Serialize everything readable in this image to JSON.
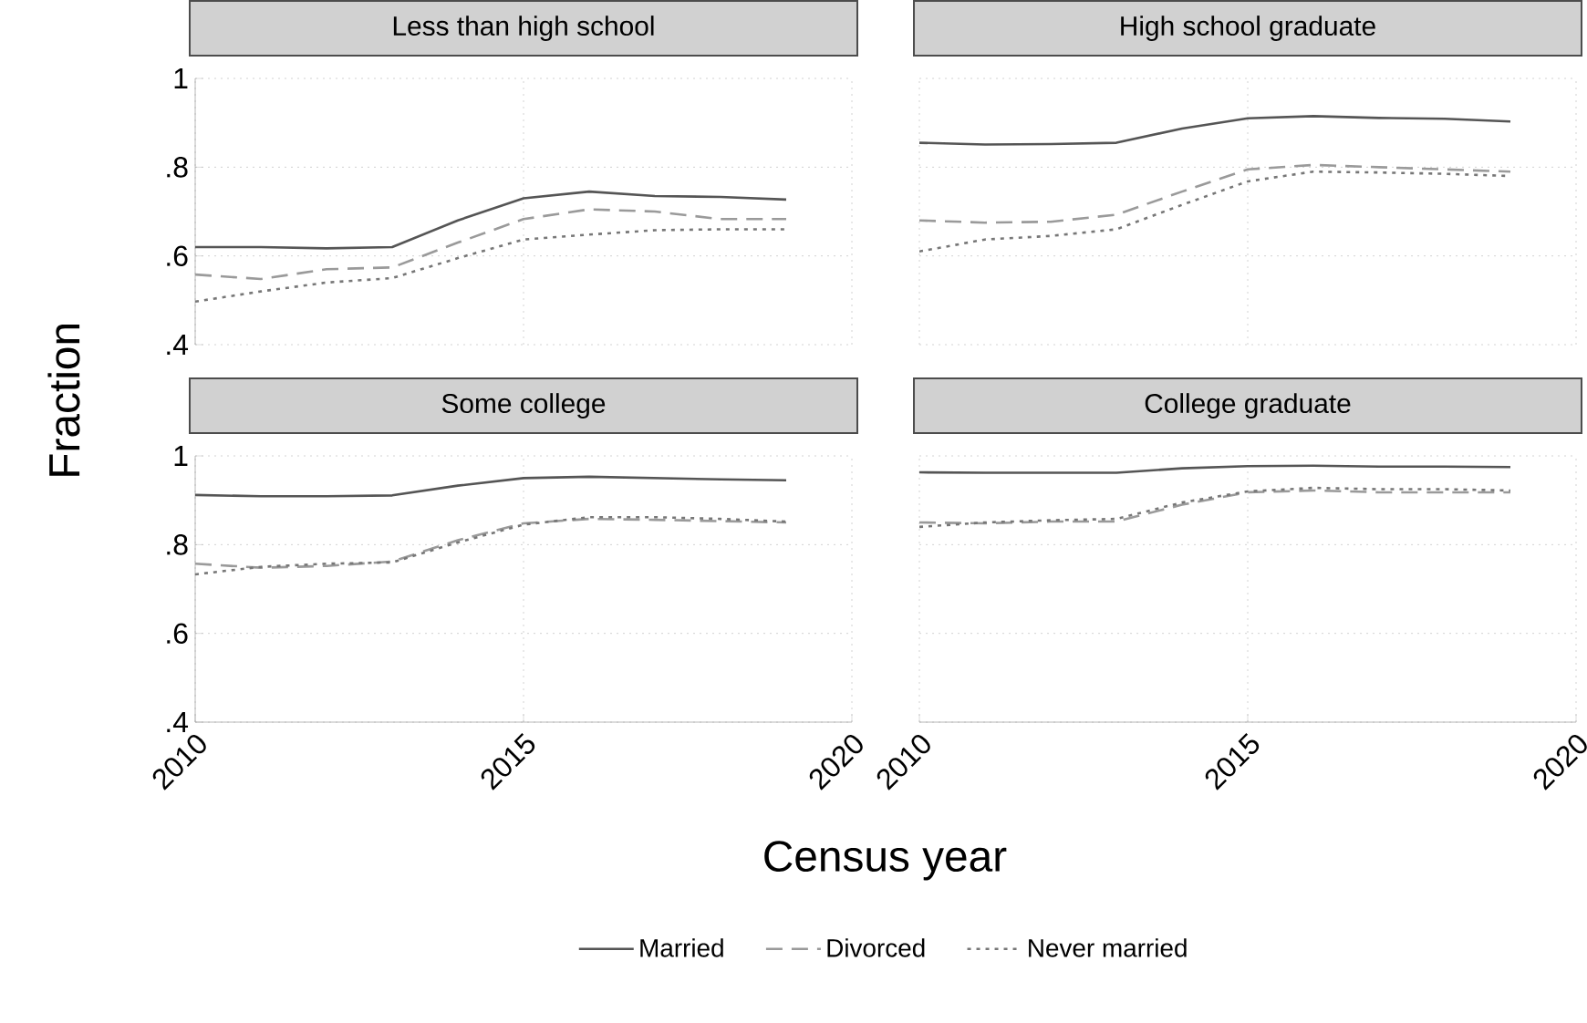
{
  "chart_data": [
    {
      "type": "line",
      "title": "Less than high school",
      "ylabel": "Fraction",
      "x": [
        2010,
        2011,
        2012,
        2013,
        2014,
        2015,
        2016,
        2017,
        2018,
        2019
      ],
      "xlim": [
        2010,
        2020
      ],
      "xticks": [
        {
          "value": 2010,
          "label": null
        },
        {
          "value": 2015,
          "label": null
        },
        {
          "value": 2020,
          "label": null
        }
      ],
      "ylim": [
        0.4,
        1
      ],
      "yticks": [
        {
          "value": 0.4,
          "label": ".4"
        },
        {
          "value": 0.6,
          "label": ".6"
        },
        {
          "value": 0.8,
          "label": ".8"
        },
        1
      ],
      "grid": true,
      "legend": "bottom",
      "tick_labels": "y",
      "series": [
        {
          "name": "Married",
          "color": "#555555",
          "line_style": "solid",
          "values": [
            0.62,
            0.62,
            0.617,
            0.62,
            0.68,
            0.73,
            0.745,
            0.735,
            0.733,
            0.727
          ]
        },
        {
          "name": "Divorced",
          "color": "#9a9a9a",
          "line_style": "dashed",
          "values": [
            0.558,
            0.548,
            0.57,
            0.574,
            0.63,
            0.683,
            0.705,
            0.7,
            0.683,
            0.683
          ]
        },
        {
          "name": "Never married",
          "color": "#777777",
          "line_style": "dotted",
          "values": [
            0.497,
            0.52,
            0.54,
            0.55,
            0.595,
            0.637,
            0.648,
            0.658,
            0.66,
            0.66
          ]
        }
      ]
    },
    {
      "type": "line",
      "title": "High school graduate",
      "x": [
        2010,
        2011,
        2012,
        2013,
        2014,
        2015,
        2016,
        2017,
        2018,
        2019
      ],
      "xlim": [
        2010,
        2020
      ],
      "xticks": [
        {
          "value": 2010,
          "label": null
        },
        {
          "value": 2015,
          "label": null
        },
        {
          "value": 2020,
          "label": null
        }
      ],
      "ylim": [
        0.4,
        1
      ],
      "yticks": [
        {
          "value": 0.4,
          "label": null
        },
        {
          "value": 0.6,
          "label": null
        },
        {
          "value": 0.8,
          "label": null
        },
        {
          "value": 1,
          "label": null
        }
      ],
      "grid": true,
      "tick_labels": false,
      "series": [
        {
          "color": "#555555",
          "line_style": "solid",
          "values": [
            0.855,
            0.851,
            0.852,
            0.855,
            0.887,
            0.91,
            0.915,
            0.911,
            0.909,
            0.903
          ]
        },
        {
          "color": "#9a9a9a",
          "line_style": "dashed",
          "values": [
            0.68,
            0.675,
            0.677,
            0.693,
            0.745,
            0.795,
            0.805,
            0.8,
            0.795,
            0.79
          ]
        },
        {
          "color": "#777777",
          "line_style": "dotted",
          "values": [
            0.61,
            0.637,
            0.645,
            0.66,
            0.715,
            0.768,
            0.79,
            0.788,
            0.785,
            0.78
          ]
        }
      ]
    },
    {
      "type": "line",
      "title": "Some college",
      "xlabel": "Census year",
      "x": [
        2010,
        2011,
        2012,
        2013,
        2014,
        2015,
        2016,
        2017,
        2018,
        2019
      ],
      "xlim": [
        2010,
        2020
      ],
      "xticks": [
        2010,
        2015,
        2020
      ],
      "ylim": [
        0.4,
        1
      ],
      "yticks": [
        {
          "value": 0.4,
          "label": ".4"
        },
        {
          "value": 0.6,
          "label": ".6"
        },
        {
          "value": 0.8,
          "label": ".8"
        },
        1
      ],
      "grid": true,
      "series": [
        {
          "color": "#555555",
          "line_style": "solid",
          "values": [
            0.912,
            0.909,
            0.909,
            0.911,
            0.933,
            0.95,
            0.953,
            0.95,
            0.947,
            0.945
          ]
        },
        {
          "color": "#9a9a9a",
          "line_style": "dashed",
          "values": [
            0.757,
            0.748,
            0.752,
            0.762,
            0.81,
            0.848,
            0.858,
            0.856,
            0.853,
            0.85
          ]
        },
        {
          "color": "#777777",
          "line_style": "dotted",
          "values": [
            0.733,
            0.75,
            0.757,
            0.76,
            0.805,
            0.845,
            0.862,
            0.862,
            0.858,
            0.852
          ]
        }
      ]
    },
    {
      "type": "line",
      "title": "College graduate",
      "x": [
        2010,
        2011,
        2012,
        2013,
        2014,
        2015,
        2016,
        2017,
        2018,
        2019
      ],
      "xlim": [
        2010,
        2020
      ],
      "xticks": [
        2010,
        2015,
        2020
      ],
      "ylim": [
        0.4,
        1
      ],
      "yticks": [
        {
          "value": 0.4,
          "label": null
        },
        {
          "value": 0.6,
          "label": null
        },
        {
          "value": 0.8,
          "label": null
        },
        {
          "value": 1,
          "label": null
        }
      ],
      "grid": true,
      "tick_labels": "x",
      "series": [
        {
          "color": "#555555",
          "line_style": "solid",
          "values": [
            0.963,
            0.962,
            0.962,
            0.962,
            0.972,
            0.977,
            0.978,
            0.976,
            0.976,
            0.975
          ]
        },
        {
          "color": "#9a9a9a",
          "line_style": "dashed",
          "values": [
            0.85,
            0.848,
            0.852,
            0.852,
            0.89,
            0.918,
            0.922,
            0.918,
            0.918,
            0.918
          ]
        },
        {
          "color": "#777777",
          "line_style": "dotted",
          "values": [
            0.84,
            0.85,
            0.855,
            0.858,
            0.895,
            0.92,
            0.928,
            0.925,
            0.925,
            0.922
          ]
        }
      ]
    }
  ]
}
